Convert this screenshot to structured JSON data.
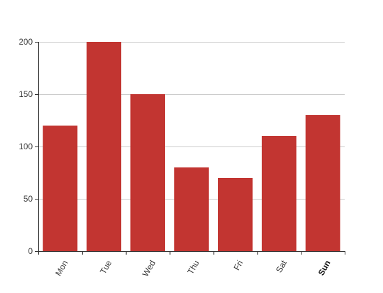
{
  "chart_data": {
    "type": "bar",
    "categories": [
      "Mon",
      "Tue",
      "Wed",
      "Thu",
      "Fri",
      "Sat",
      "Sun"
    ],
    "values": [
      120,
      200,
      150,
      80,
      70,
      110,
      130
    ],
    "ylim": [
      0,
      200
    ],
    "y_ticks": [
      0,
      50,
      100,
      150,
      200
    ],
    "grid": true,
    "colors": {
      "bar": "#c23531",
      "grid": "#cccccc",
      "axis": "#333333",
      "label": "#333333"
    },
    "emphasized_category": "Sun"
  }
}
